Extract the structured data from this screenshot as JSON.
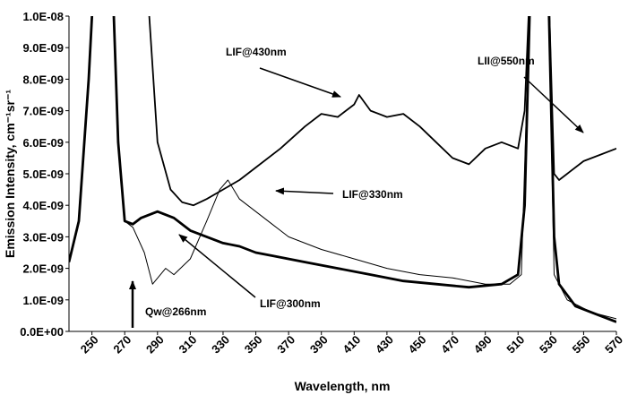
{
  "chart_data": {
    "type": "line",
    "x_label": "Wavelength, nm",
    "y_label": "Emission Intensity, cm⁻¹sr⁻¹",
    "annotations": [
      "LIF@430nm",
      "LII@550nm",
      "LIF@330nm",
      "LIF@300nm",
      "Qw@266nm"
    ],
    "xlim": [
      236,
      570
    ],
    "xticks": [
      250,
      270,
      290,
      310,
      330,
      350,
      370,
      390,
      410,
      430,
      450,
      470,
      490,
      510,
      530,
      550,
      570
    ],
    "ylim": [
      0,
      1e-08
    ],
    "yticks": [
      {
        "value": 0,
        "label": "0.0E+00"
      },
      {
        "value": 1e-09,
        "label": "1.0E-09"
      },
      {
        "value": 2e-09,
        "label": "2.0E-09"
      },
      {
        "value": 3e-09,
        "label": "3.0E-09"
      },
      {
        "value": 4e-09,
        "label": "4.0E-09"
      },
      {
        "value": 5e-09,
        "label": "5.0E-09"
      },
      {
        "value": 6e-09,
        "label": "6.0E-09"
      },
      {
        "value": 7e-09,
        "label": "7.0E-09"
      },
      {
        "value": 8e-09,
        "label": "8.0E-09"
      },
      {
        "value": 9e-09,
        "label": "9.0E-09"
      },
      {
        "value": 1e-08,
        "label": "1.0E-08"
      }
    ],
    "grid": false,
    "series": [
      {
        "color": "#000000",
        "width": 1.8,
        "x": [
          236,
          242,
          248,
          252,
          280,
          285,
          290,
          298,
          305,
          312,
          320,
          330,
          340,
          350,
          365,
          380,
          390,
          400,
          410,
          413,
          420,
          430,
          440,
          450,
          460,
          470,
          480,
          490,
          500,
          510,
          514,
          518,
          528,
          532,
          535,
          540,
          550,
          560,
          570
        ],
        "values": [
          2.2e-09,
          3.5e-09,
          8e-09,
          1.2e-08,
          1.2e-08,
          1e-08,
          6e-09,
          4.5e-09,
          4.1e-09,
          4e-09,
          4.2e-09,
          4.5e-09,
          4.8e-09,
          5.2e-09,
          5.8e-09,
          6.5e-09,
          6.9e-09,
          6.8e-09,
          7.2e-09,
          7.5e-09,
          7e-09,
          6.8e-09,
          6.9e-09,
          6.5e-09,
          6e-09,
          5.5e-09,
          5.3e-09,
          5.8e-09,
          6e-09,
          5.8e-09,
          7e-09,
          1.2e-08,
          1.2e-08,
          5e-09,
          4.8e-09,
          5e-09,
          5.4e-09,
          5.6e-09,
          5.8e-09
        ]
      },
      {
        "color": "#000000",
        "width": 2.8,
        "x": [
          236,
          242,
          248,
          252,
          262,
          266,
          270,
          275,
          280,
          290,
          300,
          310,
          320,
          330,
          340,
          350,
          360,
          380,
          400,
          420,
          440,
          460,
          480,
          500,
          510,
          514,
          518,
          528,
          532,
          535,
          545,
          560,
          570
        ],
        "values": [
          2.2e-09,
          3.5e-09,
          8e-09,
          1.2e-08,
          1.2e-08,
          6e-09,
          3.5e-09,
          3.4e-09,
          3.6e-09,
          3.8e-09,
          3.6e-09,
          3.2e-09,
          3e-09,
          2.8e-09,
          2.7e-09,
          2.5e-09,
          2.4e-09,
          2.2e-09,
          2e-09,
          1.8e-09,
          1.6e-09,
          1.5e-09,
          1.4e-09,
          1.5e-09,
          1.8e-09,
          4e-09,
          1.2e-08,
          1.2e-08,
          3e-09,
          1.5e-09,
          8e-10,
          5e-10,
          3e-10
        ]
      },
      {
        "color": "#000000",
        "width": 1,
        "x": [
          236,
          242,
          248,
          252,
          262,
          266,
          270,
          275,
          282,
          287,
          295,
          300,
          310,
          320,
          328,
          333,
          340,
          350,
          360,
          370,
          390,
          410,
          430,
          450,
          470,
          490,
          505,
          512,
          518,
          528,
          532,
          540,
          555,
          570
        ],
        "values": [
          2.2e-09,
          3.5e-09,
          8e-09,
          1.2e-08,
          1.2e-08,
          6e-09,
          3.5e-09,
          3.3e-09,
          2.5e-09,
          1.5e-09,
          2e-09,
          1.8e-09,
          2.3e-09,
          3.5e-09,
          4.5e-09,
          4.8e-09,
          4.2e-09,
          3.8e-09,
          3.4e-09,
          3e-09,
          2.6e-09,
          2.3e-09,
          2e-09,
          1.8e-09,
          1.7e-09,
          1.5e-09,
          1.5e-09,
          1.8e-09,
          1.2e-08,
          1.2e-08,
          1.8e-09,
          1e-09,
          6e-10,
          4e-10
        ]
      }
    ]
  }
}
